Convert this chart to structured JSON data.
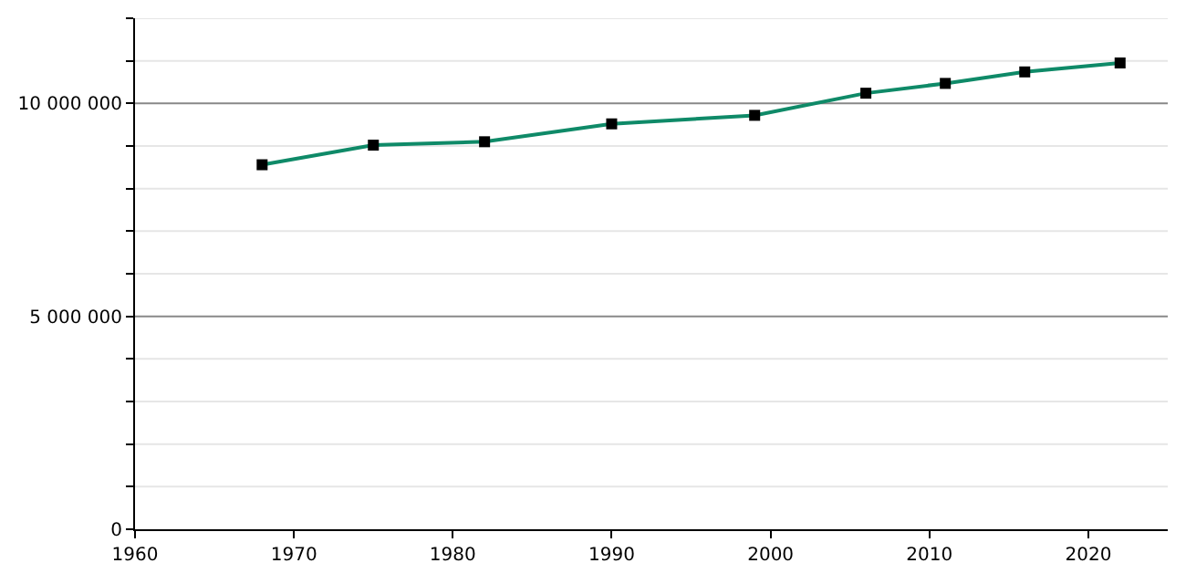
{
  "chart_data": {
    "type": "line",
    "x": [
      1968,
      1975,
      1982,
      1990,
      1999,
      2006,
      2011,
      2016,
      2022
    ],
    "series": [
      {
        "color": "#0f8a68",
        "values": [
          8560000,
          9020000,
          9100000,
          9520000,
          9720000,
          10240000,
          10470000,
          10740000,
          10950000
        ]
      }
    ],
    "xlim": [
      1960,
      2025
    ],
    "xticks": [
      1960,
      1970,
      1980,
      1990,
      2000,
      2010,
      2020
    ],
    "ylim": [
      0,
      12000000
    ],
    "yticks": [
      {
        "value": 0,
        "label": "0"
      },
      {
        "value": 1000000,
        "label": null
      },
      {
        "value": 2000000,
        "label": null
      },
      {
        "value": 3000000,
        "label": null
      },
      {
        "value": 4000000,
        "label": null
      },
      {
        "value": 5000000,
        "label": "5 000 000"
      },
      {
        "value": 6000000,
        "label": null
      },
      {
        "value": 7000000,
        "label": null
      },
      {
        "value": 8000000,
        "label": null
      },
      {
        "value": 9000000,
        "label": null
      },
      {
        "value": 10000000,
        "label": "10 000 000"
      },
      {
        "value": 11000000,
        "label": null
      },
      {
        "value": 12000000,
        "label": null
      }
    ],
    "grid": "y",
    "marker": "square",
    "line_style": "solid"
  }
}
